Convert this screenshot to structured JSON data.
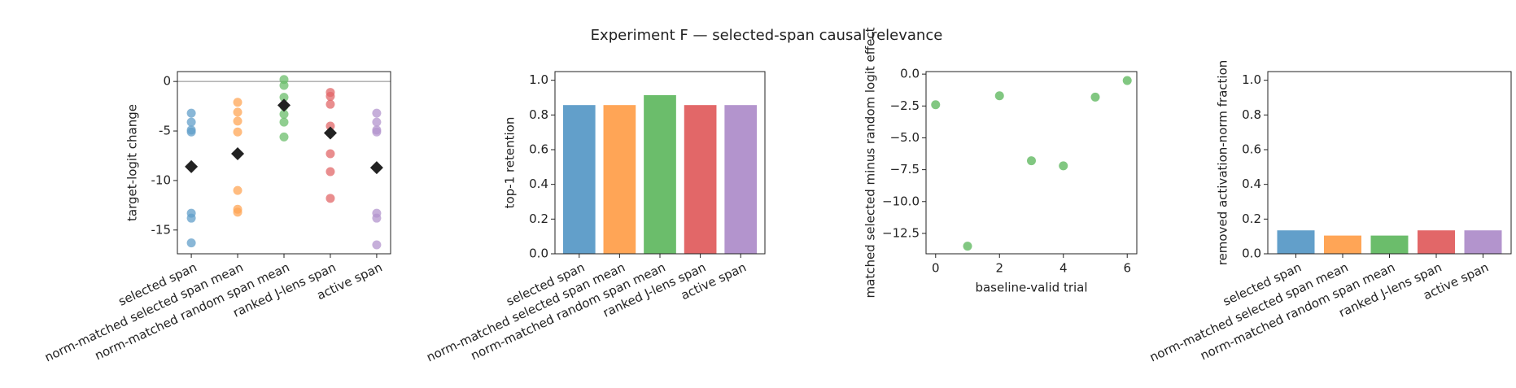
{
  "title": "Experiment F — selected-span causal relevance",
  "chart_data": [
    {
      "type": "strip",
      "ylabel": "target-logit change",
      "categories": [
        "selected span",
        "norm-matched selected span mean",
        "norm-matched random span mean",
        "ranked J-lens span",
        "active span"
      ],
      "colors": [
        "#629fca",
        "#ffa556",
        "#6bbd6b",
        "#e26768",
        "#b394cd"
      ],
      "points": [
        [
          -3.2,
          -4.1,
          -4.9,
          -5.1,
          -13.3,
          -13.8,
          -16.3
        ],
        [
          -2.1,
          -3.1,
          -4.0,
          -5.1,
          -11.0,
          -12.9,
          -13.2
        ],
        [
          0.2,
          -0.4,
          -1.6,
          -2.5,
          -3.3,
          -4.1,
          -5.6
        ],
        [
          -1.1,
          -1.5,
          -2.3,
          -4.5,
          -7.3,
          -9.1,
          -11.8
        ],
        [
          -3.2,
          -4.1,
          -4.9,
          -5.1,
          -13.3,
          -13.8,
          -16.5
        ]
      ],
      "means": [
        -8.6,
        -7.3,
        -2.4,
        -5.2,
        -8.7
      ],
      "mean_color": "#222222",
      "ylim": [
        -17.4,
        1.0
      ],
      "yticks": [
        0,
        -5,
        -10,
        -15
      ],
      "hline": 0
    },
    {
      "type": "bar",
      "ylabel": "top-1 retention",
      "categories": [
        "selected span",
        "norm-matched selected span mean",
        "norm-matched random span mean",
        "ranked J-lens span",
        "active span"
      ],
      "colors": [
        "#629fca",
        "#ffa556",
        "#6bbd6b",
        "#e26768",
        "#b394cd"
      ],
      "values": [
        0.857,
        0.857,
        0.914,
        0.857,
        0.857
      ],
      "ylim": [
        0,
        1.05
      ],
      "yticks": [
        {
          "value": 0,
          "label": "0.0"
        },
        {
          "value": 0.2,
          "label": "0.2"
        },
        {
          "value": 0.4,
          "label": "0.4"
        },
        {
          "value": 0.6,
          "label": "0.6"
        },
        {
          "value": 0.8,
          "label": "0.8"
        },
        {
          "value": 1,
          "label": "1.0"
        }
      ]
    },
    {
      "type": "scatter",
      "ylabel": "matched selected minus random logit effect",
      "xlabel": "baseline-valid trial",
      "color": "#6bbd6b",
      "x": [
        0,
        1,
        2,
        3,
        4,
        5,
        6
      ],
      "values": [
        -2.4,
        -13.5,
        -1.7,
        -6.8,
        -7.2,
        -1.8,
        -0.5
      ],
      "xlim": [
        -0.3,
        6.3
      ],
      "xticks": [
        0,
        2,
        4,
        6
      ],
      "ylim": [
        -14.1,
        0.2
      ],
      "yticks": [
        {
          "value": 0,
          "label": "0.0"
        },
        {
          "value": -2.5,
          "label": "−2.5"
        },
        {
          "value": -5,
          "label": "−5.0"
        },
        {
          "value": -7.5,
          "label": "−7.5"
        },
        {
          "value": -10,
          "label": "−10.0"
        },
        {
          "value": -12.5,
          "label": "−12.5"
        }
      ]
    },
    {
      "type": "bar",
      "ylabel": "removed activation-norm fraction",
      "categories": [
        "selected span",
        "norm-matched selected span mean",
        "norm-matched random span mean",
        "ranked J-lens span",
        "active span"
      ],
      "colors": [
        "#629fca",
        "#ffa556",
        "#6bbd6b",
        "#e26768",
        "#b394cd"
      ],
      "values": [
        0.135,
        0.105,
        0.105,
        0.135,
        0.135
      ],
      "ylim": [
        0,
        1.05
      ],
      "yticks": [
        {
          "value": 0,
          "label": "0.0"
        },
        {
          "value": 0.2,
          "label": "0.2"
        },
        {
          "value": 0.4,
          "label": "0.4"
        },
        {
          "value": 0.6,
          "label": "0.6"
        },
        {
          "value": 0.8,
          "label": "0.8"
        },
        {
          "value": 1,
          "label": "1.0"
        }
      ]
    }
  ]
}
